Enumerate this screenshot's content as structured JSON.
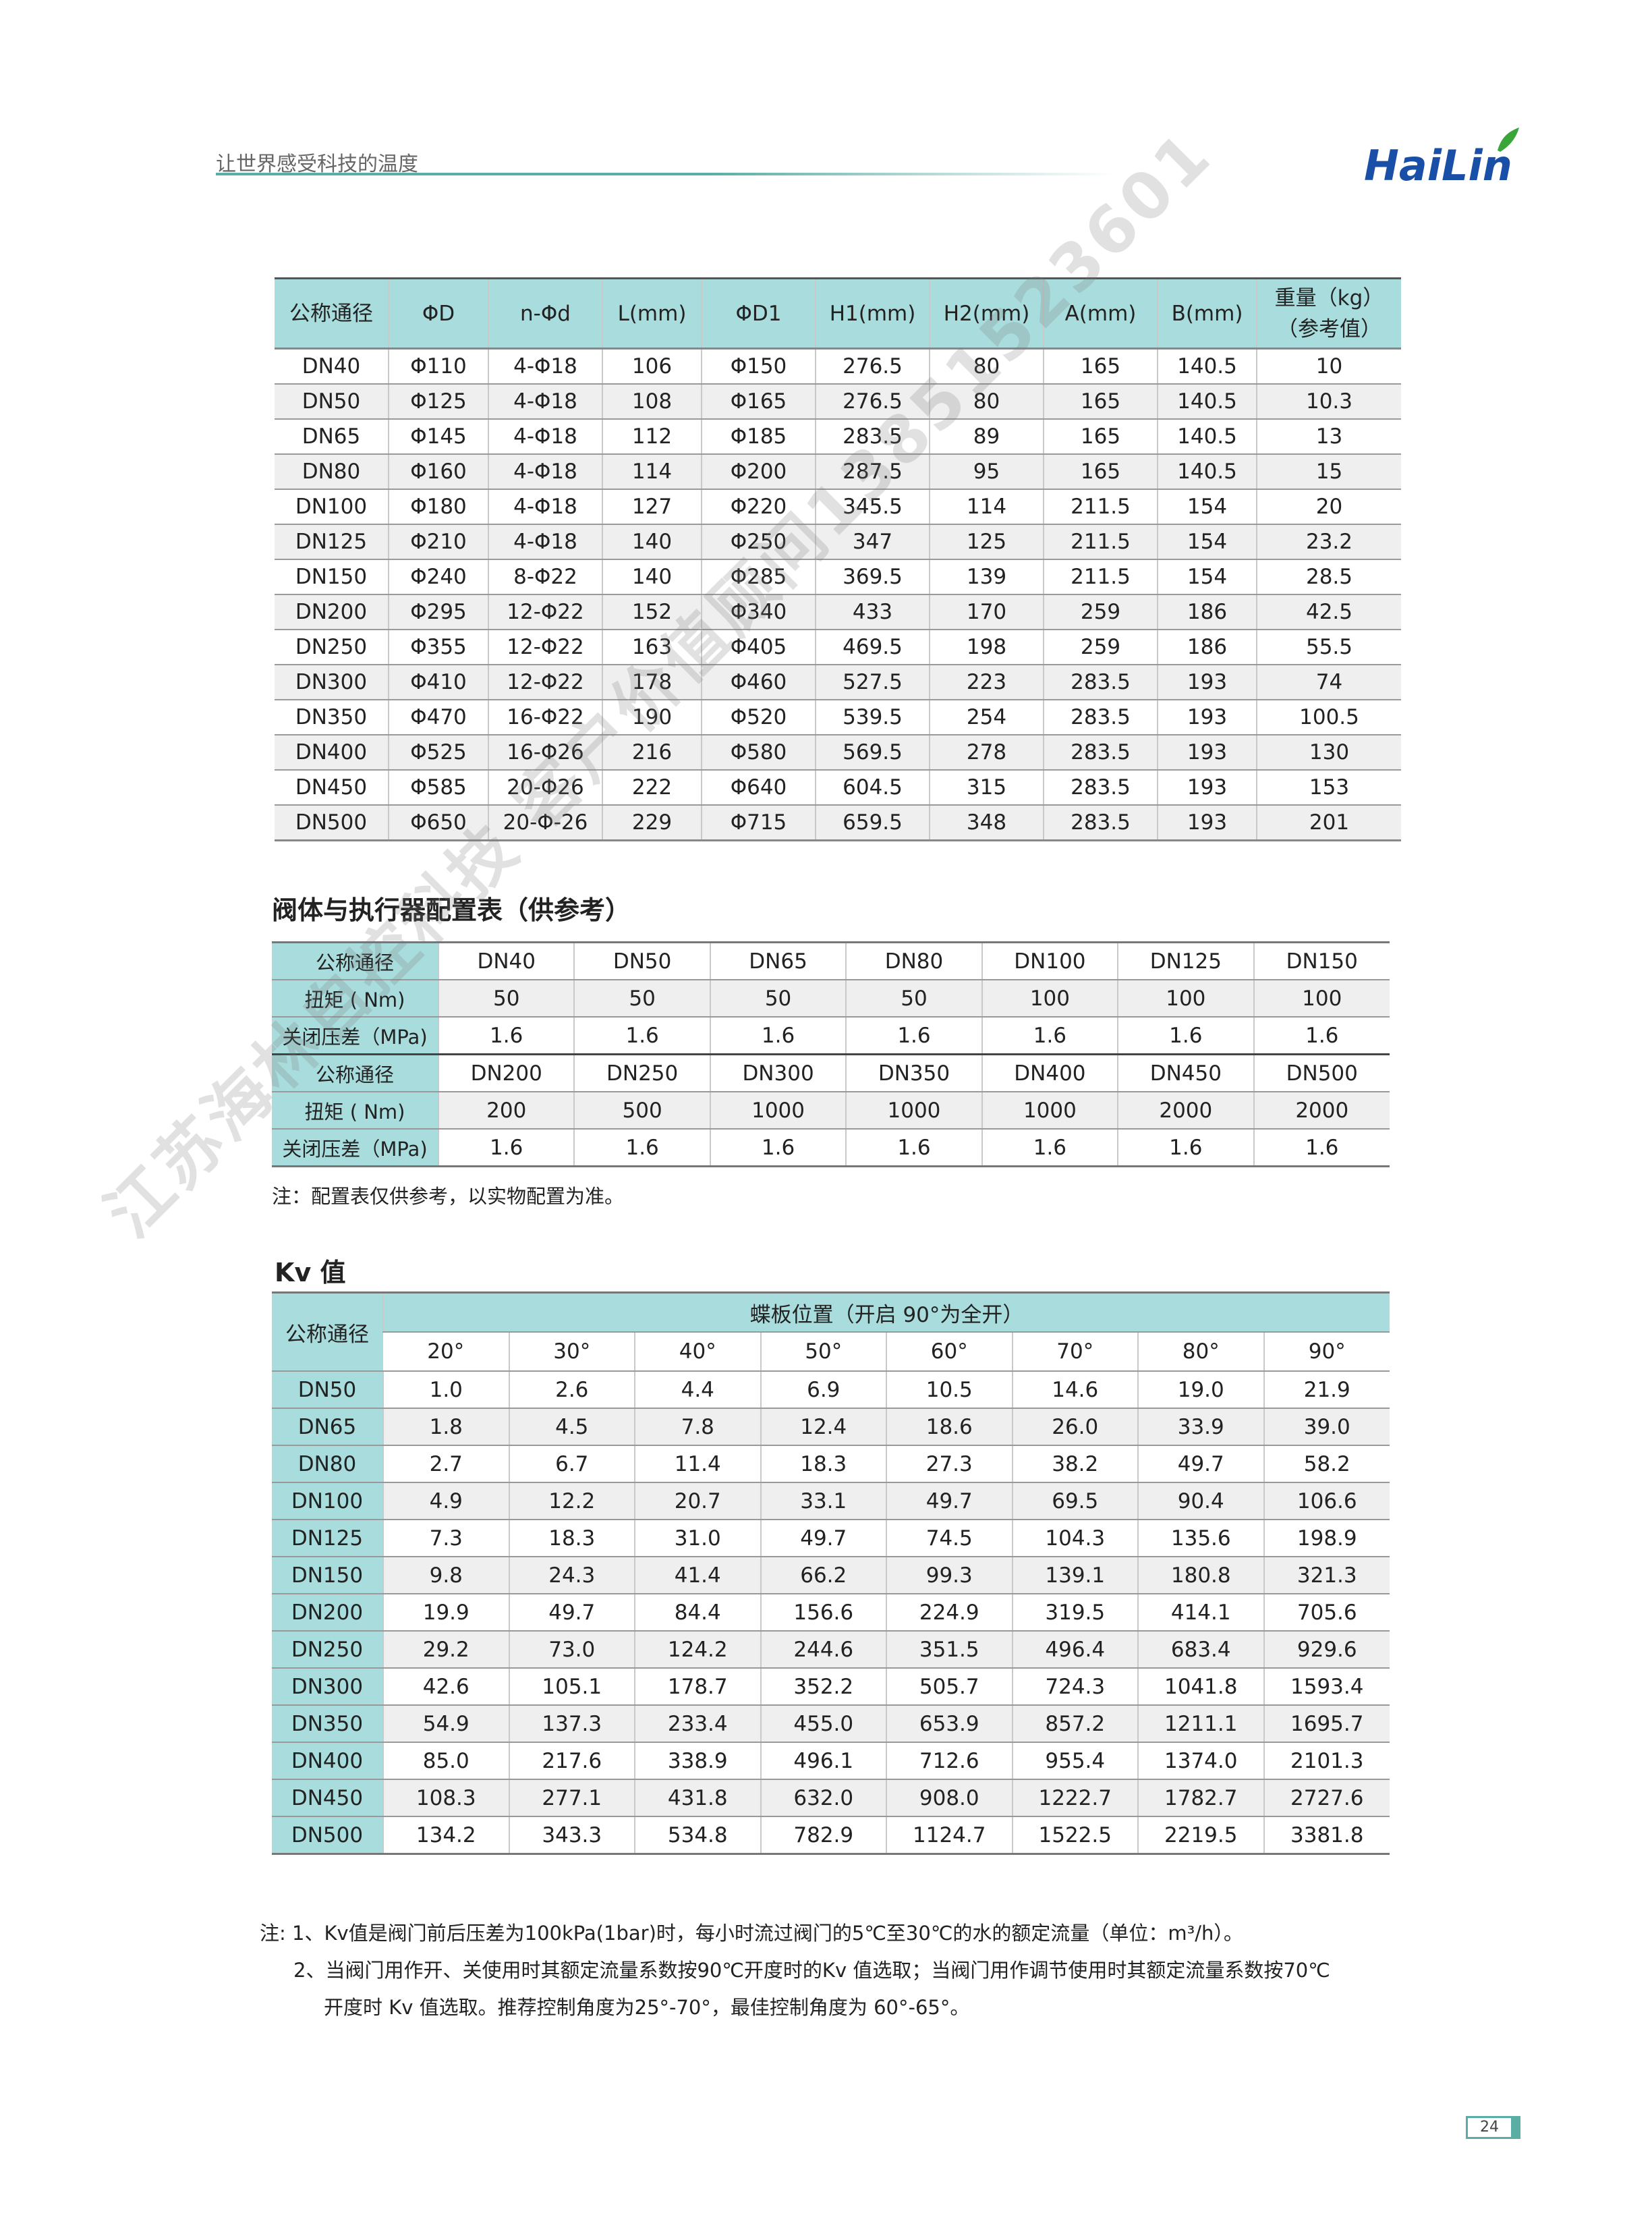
{
  "header": {
    "slogan": "让世界感受科技的温度",
    "logo_text": "HaiLin",
    "brand_color": "#1a4fa8",
    "leaf_color": "#3aa63a",
    "accent": "#5aaea3"
  },
  "dimensions_table": {
    "headers": [
      "公称通径",
      "ΦD",
      "n-Φd",
      "L(mm)",
      "ΦD1",
      "H1(mm)",
      "H2(mm)",
      "A(mm)",
      "B(mm)",
      "重量（kg）\n（参考值）"
    ],
    "rows": [
      [
        "DN40",
        "Φ110",
        "4-Φ18",
        "106",
        "Φ150",
        "276.5",
        "80",
        "165",
        "140.5",
        "10"
      ],
      [
        "DN50",
        "Φ125",
        "4-Φ18",
        "108",
        "Φ165",
        "276.5",
        "80",
        "165",
        "140.5",
        "10.3"
      ],
      [
        "DN65",
        "Φ145",
        "4-Φ18",
        "112",
        "Φ185",
        "283.5",
        "89",
        "165",
        "140.5",
        "13"
      ],
      [
        "DN80",
        "Φ160",
        "4-Φ18",
        "114",
        "Φ200",
        "287.5",
        "95",
        "165",
        "140.5",
        "15"
      ],
      [
        "DN100",
        "Φ180",
        "4-Φ18",
        "127",
        "Φ220",
        "345.5",
        "114",
        "211.5",
        "154",
        "20"
      ],
      [
        "DN125",
        "Φ210",
        "4-Φ18",
        "140",
        "Φ250",
        "347",
        "125",
        "211.5",
        "154",
        "23.2"
      ],
      [
        "DN150",
        "Φ240",
        "8-Φ22",
        "140",
        "Φ285",
        "369.5",
        "139",
        "211.5",
        "154",
        "28.5"
      ],
      [
        "DN200",
        "Φ295",
        "12-Φ22",
        "152",
        "Φ340",
        "433",
        "170",
        "259",
        "186",
        "42.5"
      ],
      [
        "DN250",
        "Φ355",
        "12-Φ22",
        "163",
        "Φ405",
        "469.5",
        "198",
        "259",
        "186",
        "55.5"
      ],
      [
        "DN300",
        "Φ410",
        "12-Φ22",
        "178",
        "Φ460",
        "527.5",
        "223",
        "283.5",
        "193",
        "74"
      ],
      [
        "DN350",
        "Φ470",
        "16-Φ22",
        "190",
        "Φ520",
        "539.5",
        "254",
        "283.5",
        "193",
        "100.5"
      ],
      [
        "DN400",
        "Φ525",
        "16-Φ26",
        "216",
        "Φ580",
        "569.5",
        "278",
        "283.5",
        "193",
        "130"
      ],
      [
        "DN450",
        "Φ585",
        "20-Φ26",
        "222",
        "Φ640",
        "604.5",
        "315",
        "283.5",
        "193",
        "153"
      ],
      [
        "DN500",
        "Φ650",
        "20-Φ-26",
        "229",
        "Φ715",
        "659.5",
        "348",
        "283.5",
        "193",
        "201"
      ]
    ]
  },
  "actuator_section": {
    "title": "阀体与执行器配置表（供参考）",
    "rows": [
      {
        "label": "公称通径",
        "values": [
          "DN40",
          "DN50",
          "DN65",
          "DN80",
          "DN100",
          "DN125",
          "DN150"
        ]
      },
      {
        "label": "扭矩 ( Nm)",
        "values": [
          "50",
          "50",
          "50",
          "50",
          "100",
          "100",
          "100"
        ]
      },
      {
        "label": "关闭压差（MPa)",
        "values": [
          "1.6",
          "1.6",
          "1.6",
          "1.6",
          "1.6",
          "1.6",
          "1.6"
        ]
      },
      {
        "label": "公称通径",
        "values": [
          "DN200",
          "DN250",
          "DN300",
          "DN350",
          "DN400",
          "DN450",
          "DN500"
        ]
      },
      {
        "label": "扭矩 ( Nm)",
        "values": [
          "200",
          "500",
          "1000",
          "1000",
          "1000",
          "2000",
          "2000"
        ]
      },
      {
        "label": "关闭压差（MPa)",
        "values": [
          "1.6",
          "1.6",
          "1.6",
          "1.6",
          "1.6",
          "1.6",
          "1.6"
        ]
      }
    ],
    "note": "注：配置表仅供参考，以实物配置为准。"
  },
  "kv_section": {
    "title": "Kv 值",
    "row_header": "公称通径",
    "group_header": "蝶板位置（开启 90°为全开）",
    "angles": [
      "20°",
      "30°",
      "40°",
      "50°",
      "60°",
      "70°",
      "80°",
      "90°"
    ],
    "rows": [
      [
        "DN50",
        "1.0",
        "2.6",
        "4.4",
        "6.9",
        "10.5",
        "14.6",
        "19.0",
        "21.9"
      ],
      [
        "DN65",
        "1.8",
        "4.5",
        "7.8",
        "12.4",
        "18.6",
        "26.0",
        "33.9",
        "39.0"
      ],
      [
        "DN80",
        "2.7",
        "6.7",
        "11.4",
        "18.3",
        "27.3",
        "38.2",
        "49.7",
        "58.2"
      ],
      [
        "DN100",
        "4.9",
        "12.2",
        "20.7",
        "33.1",
        "49.7",
        "69.5",
        "90.4",
        "106.6"
      ],
      [
        "DN125",
        "7.3",
        "18.3",
        "31.0",
        "49.7",
        "74.5",
        "104.3",
        "135.6",
        "198.9"
      ],
      [
        "DN150",
        "9.8",
        "24.3",
        "41.4",
        "66.2",
        "99.3",
        "139.1",
        "180.8",
        "321.3"
      ],
      [
        "DN200",
        "19.9",
        "49.7",
        "84.4",
        "156.6",
        "224.9",
        "319.5",
        "414.1",
        "705.6"
      ],
      [
        "DN250",
        "29.2",
        "73.0",
        "124.2",
        "244.6",
        "351.5",
        "496.4",
        "683.4",
        "929.6"
      ],
      [
        "DN300",
        "42.6",
        "105.1",
        "178.7",
        "352.2",
        "505.7",
        "724.3",
        "1041.8",
        "1593.4"
      ],
      [
        "DN350",
        "54.9",
        "137.3",
        "233.4",
        "455.0",
        "653.9",
        "857.2",
        "1211.1",
        "1695.7"
      ],
      [
        "DN400",
        "85.0",
        "217.6",
        "338.9",
        "496.1",
        "712.6",
        "955.4",
        "1374.0",
        "2101.3"
      ],
      [
        "DN450",
        "108.3",
        "277.1",
        "431.8",
        "632.0",
        "908.0",
        "1222.7",
        "1782.7",
        "2727.6"
      ],
      [
        "DN500",
        "134.2",
        "343.3",
        "534.8",
        "782.9",
        "1124.7",
        "1522.5",
        "2219.5",
        "3381.8"
      ]
    ],
    "notes": [
      "注: 1、Kv值是阀门前后压差为100kPa(1bar)时，每小时流过阀门的5℃至30℃的水的额定流量（单位：m³/h）。",
      "2、当阀门用作开、关使用时其额定流量系数按90℃开度时的Kv 值选取；当阀门用作调节使用时其额定流量系数按70℃",
      "开度时 Kv 值选取。推荐控制角度为25°-70°，最佳控制角度为 60°-65°。"
    ]
  },
  "watermark": "江苏海林自控科技  客户价值顾问13851523601",
  "page_number": "24"
}
